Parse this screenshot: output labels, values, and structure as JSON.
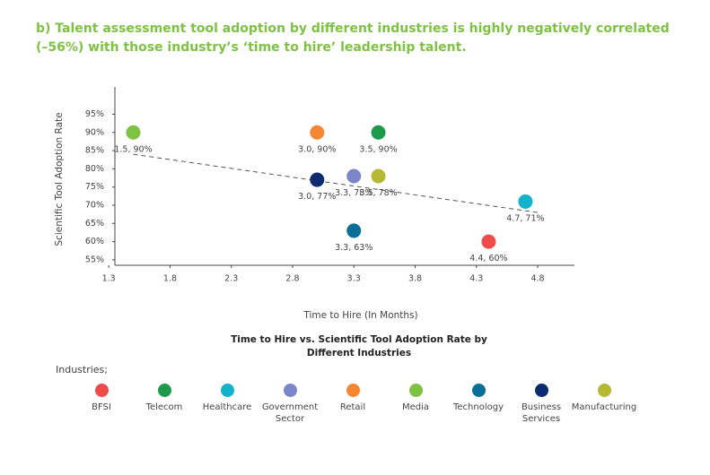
{
  "heading": "b) Talent assessment tool adoption by different industries is highly negatively correlated (–56%) with those industry’s ‘time to hire’ leadership talent.",
  "chart_data": {
    "type": "scatter",
    "x_label": "Time to Hire (In Months)",
    "y_label": "Scientific Tool Adoption Rate",
    "caption": "Time to Hire vs. Scientific Tool Adoption Rate by Different Industries",
    "legend_title": "Industries;",
    "xlim": [
      1.35,
      5.1
    ],
    "ylim": [
      53.5,
      102.5
    ],
    "xticks": [
      1.3,
      1.8,
      2.3,
      2.8,
      3.3,
      3.8,
      4.3,
      4.8
    ],
    "yticks": [
      {
        "value": 55,
        "label": "55%"
      },
      {
        "value": 60,
        "label": "60%"
      },
      {
        "value": 65,
        "label": "65%"
      },
      {
        "value": 70,
        "label": "70%"
      },
      {
        "value": 75,
        "label": "75%"
      },
      {
        "value": 80,
        "label": "80%"
      },
      {
        "value": 85,
        "label": "85%"
      },
      {
        "value": 90,
        "label": "90%"
      },
      {
        "value": 95,
        "label": "95%"
      }
    ],
    "trendline": {
      "x": [
        1.5,
        4.8
      ],
      "values": [
        84,
        68
      ]
    },
    "series": [
      {
        "name": "BFSI",
        "color": "#ef4b4b",
        "x": [
          4.4
        ],
        "values": [
          60
        ],
        "value_labels": [
          "4.4, 60%"
        ]
      },
      {
        "name": "Telecom",
        "color": "#1e9a4a",
        "x": [
          3.5
        ],
        "values": [
          90
        ],
        "value_labels": [
          "3.5, 90%"
        ]
      },
      {
        "name": "Healthcare",
        "color": "#12b1cc",
        "x": [
          4.7
        ],
        "values": [
          71
        ],
        "value_labels": [
          "4.7, 71%"
        ]
      },
      {
        "name": "Government Sector",
        "color": "#7b86c8",
        "x": [
          3.3
        ],
        "values": [
          78
        ],
        "value_labels": [
          "3.3, 78%"
        ]
      },
      {
        "name": "Retail",
        "color": "#f58634",
        "x": [
          3.0
        ],
        "values": [
          90
        ],
        "value_labels": [
          "3.0, 90%"
        ]
      },
      {
        "name": "Media",
        "color": "#7dc242",
        "x": [
          1.5
        ],
        "values": [
          90
        ],
        "value_labels": [
          "1.5, 90%"
        ]
      },
      {
        "name": "Technology",
        "color": "#0a6e96",
        "x": [
          3.3
        ],
        "values": [
          63
        ],
        "value_labels": [
          "3.3, 63%"
        ]
      },
      {
        "name": "Business Services",
        "color": "#0b2a6f",
        "x": [
          3.0
        ],
        "values": [
          77
        ],
        "value_labels": [
          "3.0, 77%"
        ]
      },
      {
        "name": "Manufacturing",
        "color": "#b5b833",
        "x": [
          3.5
        ],
        "values": [
          78
        ],
        "value_labels": [
          "3.5, 78%"
        ]
      }
    ]
  }
}
